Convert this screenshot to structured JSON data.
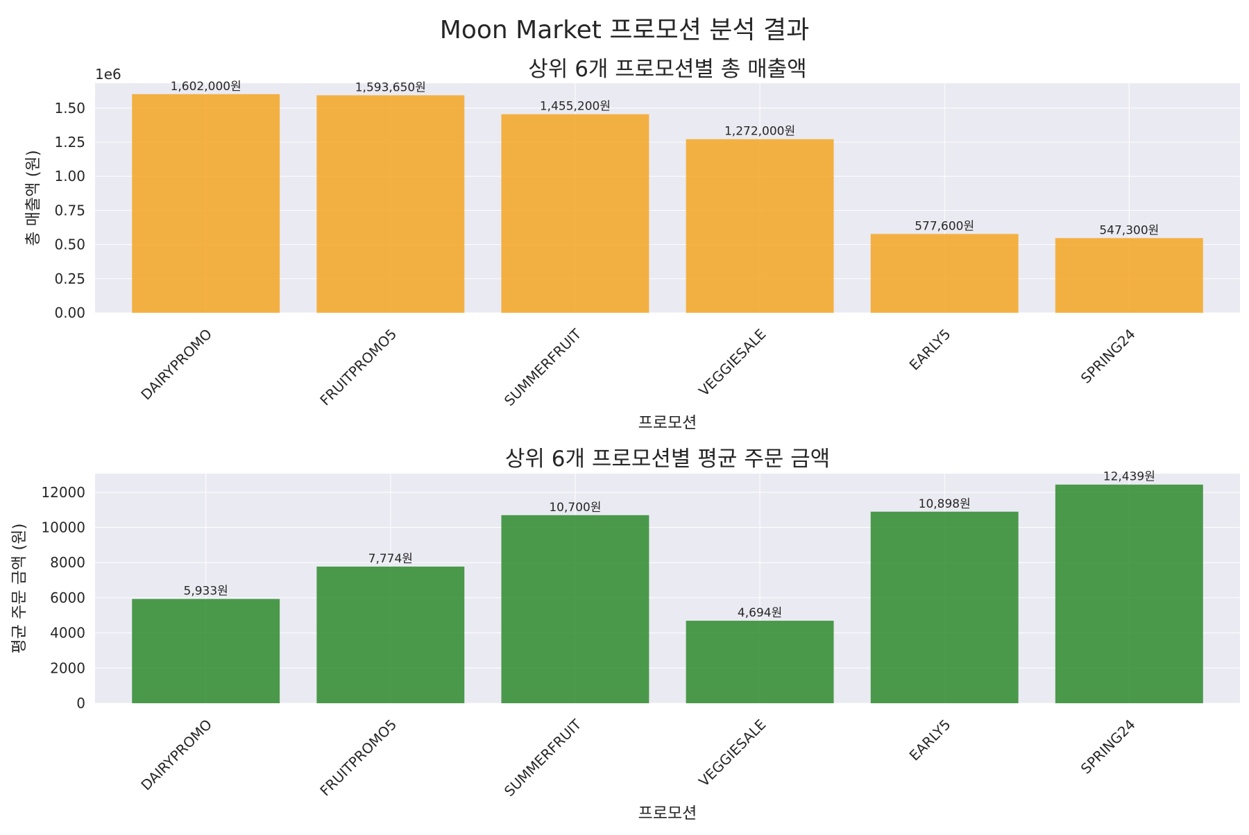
{
  "figure": {
    "suptitle": "Moon Market 프로모션 분석 결과"
  },
  "colors": {
    "plot_bg": "#eaeaf2",
    "grid": "#ffffff",
    "text": "#262626",
    "series_orange": "#f5a623",
    "series_green": "#2e8b2e"
  },
  "chart_data": [
    {
      "type": "bar",
      "title": "상위 6개 프로모션별 총 매출액",
      "xlabel": "프로모션",
      "ylabel": "총 매출액 (원)",
      "offset_label": "1e6",
      "categories": [
        "DAIRYPROMO",
        "FRUITPROMO5",
        "SUMMERFRUIT",
        "VEGGIESALE",
        "EARLY5",
        "SPRING24"
      ],
      "values": [
        1602000,
        1593650,
        1455200,
        1272000,
        577600,
        547300
      ],
      "data_labels": [
        "1,602,000원",
        "1,593,650원",
        "1,455,200원",
        "1,272,000원",
        "577,600원",
        "547,300원"
      ],
      "ylim": [
        0,
        1682100
      ],
      "yticks": [
        0,
        250000,
        500000,
        750000,
        1000000,
        1250000,
        1500000
      ],
      "ytick_labels": [
        "0.00",
        "0.25",
        "0.50",
        "0.75",
        "1.00",
        "1.25",
        "1.50"
      ],
      "grid": true,
      "color": "orange"
    },
    {
      "type": "bar",
      "title": "상위 6개 프로모션별 평균 주문 금액",
      "xlabel": "프로모션",
      "ylabel": "평균 주문 금액 (원)",
      "categories": [
        "DAIRYPROMO",
        "FRUITPROMO5",
        "SUMMERFRUIT",
        "VEGGIESALE",
        "EARLY5",
        "SPRING24"
      ],
      "values": [
        5933,
        7774,
        10700,
        4694,
        10898,
        12439
      ],
      "data_labels": [
        "5,933원",
        "7,774원",
        "10,700원",
        "4,694원",
        "10,898원",
        "12,439원"
      ],
      "ylim": [
        0,
        13060
      ],
      "yticks": [
        0,
        2000,
        4000,
        6000,
        8000,
        10000,
        12000
      ],
      "ytick_labels": [
        "0",
        "2000",
        "4000",
        "6000",
        "8000",
        "10000",
        "12000"
      ],
      "grid": true,
      "color": "green"
    }
  ]
}
